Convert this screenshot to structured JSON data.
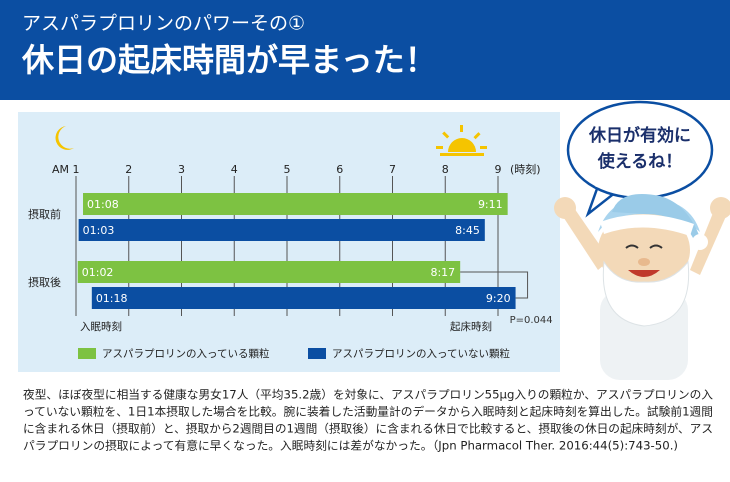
{
  "header": {
    "kicker": "アスパラプロリンのパワーその①",
    "title": "休日の起床時間が早まった！"
  },
  "bubble": {
    "lines": [
      "休日が有効に",
      "使えるね！"
    ]
  },
  "chart_data": {
    "type": "range-bar",
    "x_prefix": "AM",
    "x_unit": "(時刻)",
    "xlim": [
      1,
      9
    ],
    "xticks": [
      1,
      2,
      3,
      4,
      5,
      6,
      7,
      8,
      9
    ],
    "grid": true,
    "categories": [
      "摂取前",
      "摂取後"
    ],
    "series": [
      {
        "name": "アスパラプロリンの入っている顆粒",
        "color": "#7dc242",
        "start": [
          1.133,
          1.033
        ],
        "start_labels": [
          "01:08",
          "01:02"
        ],
        "end": [
          9.183,
          8.283
        ],
        "end_labels": [
          "9:11",
          "8:17"
        ]
      },
      {
        "name": "アスパラプロリンの入っていない顆粒",
        "color": "#0b4ea2",
        "start": [
          1.05,
          1.3
        ],
        "start_labels": [
          "01:03",
          "01:18"
        ],
        "end": [
          8.75,
          9.333
        ],
        "end_labels": [
          "8:45",
          "9:20"
        ]
      }
    ],
    "annotations": {
      "sleep": "入眠時刻",
      "wake": "起床時刻",
      "p": "P=0.044"
    }
  },
  "footnote": {
    "lines": [
      "夜型、ほぼ夜型に相当する健康な男女17人（平均35.2歳）を対象に、アスパラプロリン55μg入りの顆粒か、アスパラプロリンの入",
      "っていない顆粒を、1日1本摂取した場合を比較。腕に装着した活動量計のデータから入眠時刻と起床時刻を算出した。試験前1週間",
      "に含まれる休日（摂取前）と、摂取から2週間目の1週間（摂取後）に含まれる休日で比較すると、摂取後の休日の起床時刻が、アス",
      "パラプロリンの摂取によって有意に早くなった。入眠時刻には差がなかった。（Jpn Pharmacol Ther. 2016:44(5):743-50.)"
    ]
  }
}
